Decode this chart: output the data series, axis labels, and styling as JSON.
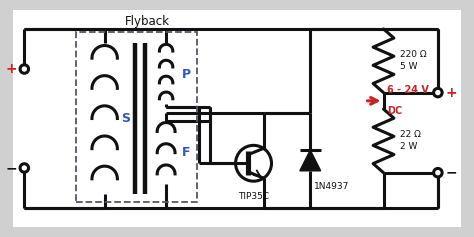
{
  "bg_color": "#d0d0d0",
  "circuit_bg": "#ffffff",
  "line_color": "#111111",
  "title": "Flyback",
  "label_s": "S",
  "label_p": "P",
  "label_f": "F",
  "label_transistor": "TIP35C",
  "label_diode": "1N4937",
  "label_r1": "220 Ω\n5 W",
  "label_r2": "22 Ω\n2 W",
  "label_out": "6 - 24 V\nDC",
  "label_plus": "+",
  "label_minus": "−",
  "blue_color": "#3355cc",
  "red_color": "#cc2222",
  "black_color": "#111111",
  "dash_color": "#555566"
}
